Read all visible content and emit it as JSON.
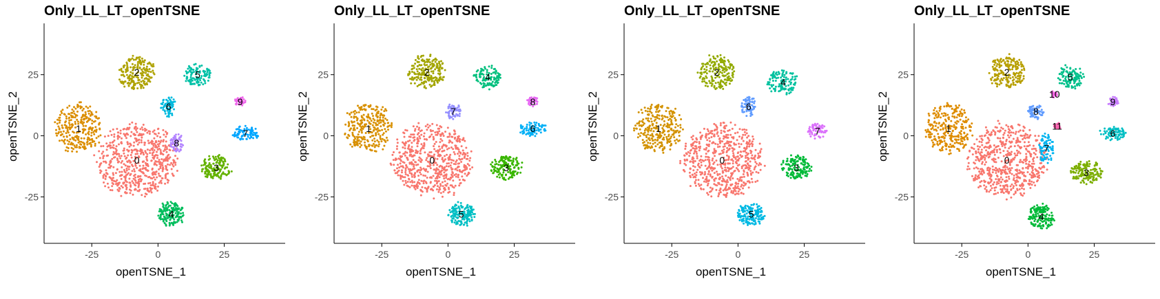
{
  "figure": {
    "background": "#ffffff"
  },
  "chart_data": [
    {
      "type": "scatter",
      "title": "Only_LL_LT_openTSNE",
      "xlabel": "openTSNE_1",
      "ylabel": "openTSNE_2",
      "xlim": [
        -43,
        48
      ],
      "ylim": [
        -44,
        46
      ],
      "x_ticks": [
        -25,
        0,
        25
      ],
      "y_ticks": [
        -25,
        0,
        25
      ],
      "grid": false,
      "legend": "none",
      "clusters": [
        {
          "label": "0",
          "color": "#F8766D",
          "x": -8,
          "y": -10,
          "sx": 15,
          "sy": 15,
          "n": 620
        },
        {
          "label": "1",
          "color": "#DB8E00",
          "x": -30,
          "y": 3,
          "sx": 9,
          "sy": 10,
          "n": 280
        },
        {
          "label": "2",
          "color": "#AEA200",
          "x": -8,
          "y": 26,
          "sx": 7,
          "sy": 7,
          "n": 200
        },
        {
          "label": "3",
          "color": "#64B200",
          "x": 22,
          "y": -13,
          "sx": 6,
          "sy": 5,
          "n": 150
        },
        {
          "label": "4",
          "color": "#00BD5C",
          "x": 5,
          "y": -32,
          "sx": 5,
          "sy": 5,
          "n": 150
        },
        {
          "label": "5",
          "color": "#00C1A7",
          "x": 15,
          "y": 25,
          "sx": 5,
          "sy": 5,
          "n": 110
        },
        {
          "label": "6",
          "color": "#00BADE",
          "x": 4,
          "y": 12,
          "sx": 3,
          "sy": 4,
          "n": 70
        },
        {
          "label": "7",
          "color": "#00A6FF",
          "x": 33,
          "y": 1,
          "sx": 5,
          "sy": 3,
          "n": 80
        },
        {
          "label": "8",
          "color": "#B385FF",
          "x": 7,
          "y": -3,
          "sx": 2.5,
          "sy": 4,
          "n": 60
        },
        {
          "label": "9",
          "color": "#EF67EB",
          "x": 31,
          "y": 14,
          "sx": 2,
          "sy": 2,
          "n": 40
        }
      ]
    },
    {
      "type": "scatter",
      "title": "Only_LL_LT_openTSNE",
      "xlabel": "openTSNE_1",
      "ylabel": "openTSNE_2",
      "xlim": [
        -43,
        48
      ],
      "ylim": [
        -44,
        46
      ],
      "x_ticks": [
        -25,
        0,
        25
      ],
      "y_ticks": [
        -25,
        0,
        25
      ],
      "grid": false,
      "legend": "none",
      "clusters": [
        {
          "label": "0",
          "color": "#F8766D",
          "x": -6,
          "y": -10,
          "sx": 15,
          "sy": 15,
          "n": 620
        },
        {
          "label": "1",
          "color": "#D89000",
          "x": -30,
          "y": 3,
          "sx": 9,
          "sy": 10,
          "n": 280
        },
        {
          "label": "2",
          "color": "#A3A500",
          "x": -8,
          "y": 26,
          "sx": 7,
          "sy": 7,
          "n": 200
        },
        {
          "label": "3",
          "color": "#39B600",
          "x": 22,
          "y": -13,
          "sx": 6,
          "sy": 5,
          "n": 150
        },
        {
          "label": "4",
          "color": "#00BF7D",
          "x": 15,
          "y": 24,
          "sx": 5,
          "sy": 5,
          "n": 110
        },
        {
          "label": "5",
          "color": "#00BFC4",
          "x": 5,
          "y": -32,
          "sx": 5,
          "sy": 5,
          "n": 150
        },
        {
          "label": "6",
          "color": "#00B0F6",
          "x": 32,
          "y": 3,
          "sx": 5,
          "sy": 3,
          "n": 80
        },
        {
          "label": "7",
          "color": "#9590FF",
          "x": 2,
          "y": 10,
          "sx": 3,
          "sy": 3,
          "n": 60
        },
        {
          "label": "8",
          "color": "#E76BF3",
          "x": 32,
          "y": 14,
          "sx": 2,
          "sy": 2,
          "n": 40
        }
      ]
    },
    {
      "type": "scatter",
      "title": "Only_LL_LT_openTSNE",
      "xlabel": "openTSNE_1",
      "ylabel": "openTSNE_2",
      "xlim": [
        -43,
        48
      ],
      "ylim": [
        -44,
        46
      ],
      "x_ticks": [
        -25,
        0,
        25
      ],
      "y_ticks": [
        -25,
        0,
        25
      ],
      "grid": false,
      "legend": "none",
      "clusters": [
        {
          "label": "0",
          "color": "#F8766D",
          "x": -6,
          "y": -10,
          "sx": 15,
          "sy": 15,
          "n": 620
        },
        {
          "label": "1",
          "color": "#D39200",
          "x": -30,
          "y": 3,
          "sx": 9,
          "sy": 10,
          "n": 280
        },
        {
          "label": "2",
          "color": "#93AA00",
          "x": -8,
          "y": 26,
          "sx": 7,
          "sy": 7,
          "n": 200
        },
        {
          "label": "3",
          "color": "#00BA38",
          "x": 22,
          "y": -13,
          "sx": 6,
          "sy": 5,
          "n": 150
        },
        {
          "label": "4",
          "color": "#00C19F",
          "x": 17,
          "y": 22,
          "sx": 6,
          "sy": 5,
          "n": 120
        },
        {
          "label": "5",
          "color": "#00B9E3",
          "x": 5,
          "y": -32,
          "sx": 5,
          "sy": 5,
          "n": 150
        },
        {
          "label": "6",
          "color": "#619CFF",
          "x": 4,
          "y": 12,
          "sx": 3,
          "sy": 4,
          "n": 70
        },
        {
          "label": "7",
          "color": "#DB72FB",
          "x": 30,
          "y": 2,
          "sx": 4,
          "sy": 3,
          "n": 70
        }
      ]
    },
    {
      "type": "scatter",
      "title": "Only_LL_LT_openTSNE",
      "xlabel": "openTSNE_1",
      "ylabel": "openTSNE_2",
      "xlim": [
        -43,
        48
      ],
      "ylim": [
        -44,
        46
      ],
      "x_ticks": [
        -25,
        0,
        25
      ],
      "y_ticks": [
        -25,
        0,
        25
      ],
      "grid": false,
      "legend": "none",
      "clusters": [
        {
          "label": "0",
          "color": "#F8766D",
          "x": -8,
          "y": -10,
          "sx": 15,
          "sy": 15,
          "n": 620
        },
        {
          "label": "1",
          "color": "#DE8C00",
          "x": -30,
          "y": 3,
          "sx": 9,
          "sy": 10,
          "n": 280
        },
        {
          "label": "2",
          "color": "#B79F00",
          "x": -8,
          "y": 26,
          "sx": 7,
          "sy": 7,
          "n": 200
        },
        {
          "label": "3",
          "color": "#7CAE00",
          "x": 22,
          "y": -15,
          "sx": 6,
          "sy": 5,
          "n": 150
        },
        {
          "label": "4",
          "color": "#00BA38",
          "x": 5,
          "y": -33,
          "sx": 5,
          "sy": 5,
          "n": 150
        },
        {
          "label": "5",
          "color": "#00C08B",
          "x": 16,
          "y": 24,
          "sx": 5,
          "sy": 5,
          "n": 110
        },
        {
          "label": "6",
          "color": "#00BFC4",
          "x": 32,
          "y": 1,
          "sx": 5,
          "sy": 3,
          "n": 80
        },
        {
          "label": "7",
          "color": "#00B4F0",
          "x": 7,
          "y": -5,
          "sx": 3,
          "sy": 6,
          "n": 80
        },
        {
          "label": "8",
          "color": "#619CFF",
          "x": 3,
          "y": 10,
          "sx": 3,
          "sy": 3,
          "n": 60
        },
        {
          "label": "9",
          "color": "#C77CFF",
          "x": 32,
          "y": 14,
          "sx": 2,
          "sy": 2,
          "n": 40
        },
        {
          "label": "10",
          "color": "#F564E3",
          "x": 10,
          "y": 17,
          "sx": 1.5,
          "sy": 1.5,
          "n": 20
        },
        {
          "label": "11",
          "color": "#FF64B0",
          "x": 11,
          "y": 4,
          "sx": 1.5,
          "sy": 1.5,
          "n": 20
        }
      ]
    }
  ]
}
